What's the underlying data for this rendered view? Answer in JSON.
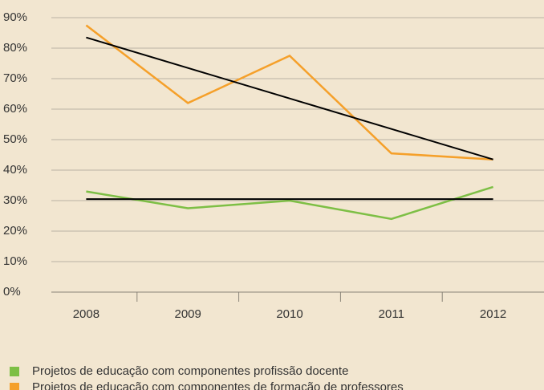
{
  "chart_data": {
    "type": "line",
    "categories": [
      "2008",
      "2009",
      "2010",
      "2011",
      "2012"
    ],
    "series": [
      {
        "name": "Projetos de educação com componentes profissão docente",
        "color": "#7dbf45",
        "values": [
          33,
          27.5,
          30,
          24,
          34.5
        ]
      },
      {
        "name": "Projetos de educação com componentes de formação de professores",
        "color": "#f5a02a",
        "values": [
          87.5,
          62,
          77.5,
          45.5,
          43.5
        ]
      }
    ],
    "trendlines": [
      {
        "color": "#000000",
        "values": [
          30.5,
          30.5,
          30.5,
          30.5,
          30.5
        ]
      },
      {
        "color": "#000000",
        "values": [
          83.5,
          73.5,
          63.5,
          53.5,
          43.5
        ]
      }
    ],
    "ylim": [
      0,
      90
    ],
    "yticks": [
      {
        "value": 0,
        "label": "0%"
      },
      {
        "value": 10,
        "label": "10%"
      },
      {
        "value": 20,
        "label": "20%"
      },
      {
        "value": 30,
        "label": "30%"
      },
      {
        "value": 40,
        "label": "40%"
      },
      {
        "value": 50,
        "label": "50%"
      },
      {
        "value": 60,
        "label": "60%"
      },
      {
        "value": 70,
        "label": "70%"
      },
      {
        "value": 80,
        "label": "80%"
      },
      {
        "value": 90,
        "label": "90%"
      }
    ],
    "grid": true
  }
}
